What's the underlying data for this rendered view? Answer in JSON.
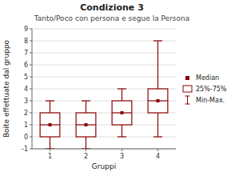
{
  "chart_data": {
    "type": "box",
    "title": "Condizione 3",
    "subtitle": "Tanto/Poco con persona e segue la Persona",
    "x_label": "Gruppi",
    "y_label": "Boite effettuate dal gruppo",
    "x": [
      1,
      2,
      3,
      4
    ],
    "xlim": [
      0.5,
      4.5
    ],
    "xticks": [
      1,
      2,
      3,
      4
    ],
    "series": [
      {
        "name": "Median",
        "values": [
          1,
          1,
          2,
          3
        ]
      },
      {
        "name": "25%-75%",
        "low": [
          0,
          0,
          1,
          2
        ],
        "high": [
          2,
          2,
          3,
          4
        ]
      },
      {
        "name": "Min-Max.",
        "low": [
          -1,
          -1,
          0,
          0
        ],
        "high": [
          3,
          3,
          4,
          8
        ]
      }
    ],
    "color": "#8b0000",
    "ylim": [
      -1,
      9
    ],
    "yticks": [
      -1,
      0,
      1,
      2,
      3,
      4,
      5,
      6,
      7,
      8,
      9
    ],
    "grid": true,
    "legend": "right"
  }
}
